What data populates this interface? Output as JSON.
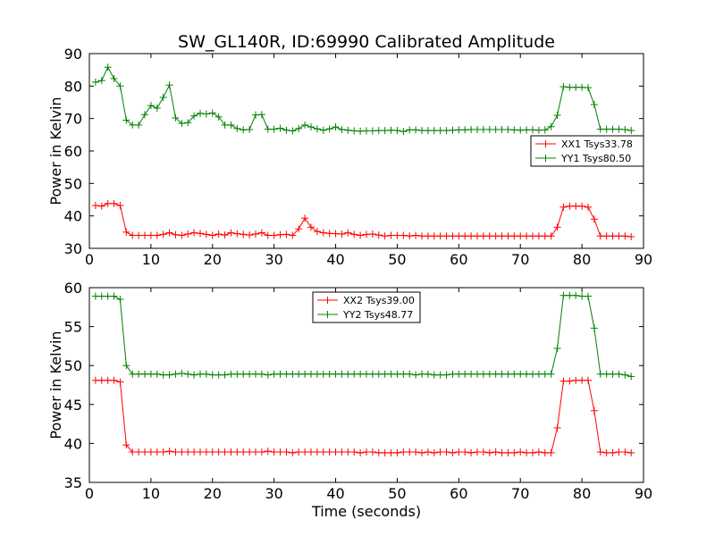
{
  "title": "SW_GL140R, ID:69990 Calibrated Amplitude",
  "chart_data": [
    {
      "type": "line",
      "title": "SW_GL140R, ID:69990 Calibrated Amplitude",
      "xlabel": "",
      "ylabel": "Power in Kelvin",
      "xlim": [
        0,
        90
      ],
      "ylim": [
        30,
        90
      ],
      "xticks": [
        0,
        10,
        20,
        30,
        40,
        50,
        60,
        70,
        80,
        90
      ],
      "yticks": [
        30,
        40,
        50,
        60,
        70,
        80,
        90
      ],
      "grid": false,
      "legend_position": "right",
      "x": [
        1,
        2,
        3,
        4,
        5,
        6,
        7,
        8,
        9,
        10,
        11,
        12,
        13,
        14,
        15,
        16,
        17,
        18,
        19,
        20,
        21,
        22,
        23,
        24,
        25,
        26,
        27,
        28,
        29,
        30,
        31,
        32,
        33,
        34,
        35,
        36,
        37,
        38,
        39,
        40,
        41,
        42,
        43,
        44,
        45,
        46,
        47,
        48,
        49,
        50,
        51,
        52,
        53,
        54,
        55,
        56,
        57,
        58,
        59,
        60,
        61,
        62,
        63,
        64,
        65,
        66,
        67,
        68,
        69,
        70,
        71,
        72,
        73,
        74,
        75,
        76,
        77,
        78,
        79,
        80,
        81,
        82,
        83,
        84,
        85,
        86,
        87,
        88
      ],
      "series": [
        {
          "name": "XX1 Tsys33.78",
          "color": "#ff0000",
          "values": [
            43.2,
            43.0,
            43.8,
            43.8,
            43.2,
            35.0,
            34.0,
            34.0,
            34.0,
            34.0,
            34.0,
            34.3,
            34.8,
            34.2,
            34.0,
            34.4,
            34.8,
            34.6,
            34.3,
            34.0,
            34.4,
            34.1,
            34.8,
            34.5,
            34.3,
            34.1,
            34.4,
            34.8,
            34.0,
            34.0,
            34.2,
            34.3,
            34.0,
            36.0,
            39.3,
            36.5,
            35.2,
            34.8,
            34.6,
            34.5,
            34.4,
            34.8,
            34.3,
            34.0,
            34.3,
            34.4,
            34.1,
            33.8,
            34.0,
            34.0,
            34.0,
            33.8,
            34.0,
            33.8,
            33.8,
            33.8,
            33.8,
            33.8,
            33.8,
            33.8,
            33.8,
            33.8,
            33.8,
            33.8,
            33.8,
            33.8,
            33.8,
            33.8,
            33.8,
            33.8,
            33.8,
            33.8,
            33.8,
            33.8,
            33.8,
            36.5,
            42.7,
            43.0,
            43.0,
            43.0,
            42.7,
            39.0,
            33.8,
            33.8,
            33.8,
            33.8,
            33.8,
            33.6
          ]
        },
        {
          "name": "YY1 Tsys80.50",
          "color": "#008000",
          "values": [
            81.2,
            81.7,
            85.8,
            82.3,
            80.0,
            69.5,
            68.0,
            68.0,
            71.2,
            74.0,
            73.2,
            76.5,
            80.3,
            70.2,
            68.5,
            68.7,
            70.8,
            71.6,
            71.4,
            71.7,
            70.5,
            68.0,
            68.0,
            66.9,
            66.5,
            66.6,
            71.1,
            71.2,
            66.7,
            66.7,
            67.0,
            66.4,
            66.2,
            66.9,
            68.0,
            67.4,
            66.8,
            66.4,
            66.8,
            67.4,
            66.6,
            66.4,
            66.2,
            66.1,
            66.2,
            66.2,
            66.3,
            66.3,
            66.4,
            66.3,
            66.0,
            66.5,
            66.5,
            66.3,
            66.3,
            66.3,
            66.3,
            66.3,
            66.4,
            66.5,
            66.5,
            66.6,
            66.6,
            66.6,
            66.6,
            66.6,
            66.6,
            66.6,
            66.5,
            66.4,
            66.5,
            66.5,
            66.4,
            66.5,
            67.5,
            71.0,
            79.8,
            79.6,
            79.6,
            79.6,
            79.5,
            74.3,
            66.7,
            66.7,
            66.7,
            66.7,
            66.6,
            66.3
          ]
        }
      ]
    },
    {
      "type": "line",
      "title": "",
      "xlabel": "Time (seconds)",
      "ylabel": "Power in Kelvin",
      "xlim": [
        0,
        90
      ],
      "ylim": [
        35,
        60
      ],
      "xticks": [
        0,
        10,
        20,
        30,
        40,
        50,
        60,
        70,
        80,
        90
      ],
      "yticks": [
        35,
        40,
        45,
        50,
        55,
        60
      ],
      "grid": false,
      "legend_position": "top-center",
      "x": [
        1,
        2,
        3,
        4,
        5,
        6,
        7,
        8,
        9,
        10,
        11,
        12,
        13,
        14,
        15,
        16,
        17,
        18,
        19,
        20,
        21,
        22,
        23,
        24,
        25,
        26,
        27,
        28,
        29,
        30,
        31,
        32,
        33,
        34,
        35,
        36,
        37,
        38,
        39,
        40,
        41,
        42,
        43,
        44,
        45,
        46,
        47,
        48,
        49,
        50,
        51,
        52,
        53,
        54,
        55,
        56,
        57,
        58,
        59,
        60,
        61,
        62,
        63,
        64,
        65,
        66,
        67,
        68,
        69,
        70,
        71,
        72,
        73,
        74,
        75,
        76,
        77,
        78,
        79,
        80,
        81,
        82,
        83,
        84,
        85,
        86,
        87,
        88
      ],
      "series": [
        {
          "name": "XX2 Tsys39.00",
          "color": "#ff0000",
          "values": [
            48.1,
            48.1,
            48.1,
            48.1,
            47.9,
            39.8,
            38.9,
            38.9,
            38.9,
            38.9,
            38.9,
            38.9,
            39.0,
            38.9,
            38.9,
            38.9,
            38.9,
            38.9,
            38.9,
            38.9,
            38.9,
            38.9,
            38.9,
            38.9,
            38.9,
            38.9,
            38.9,
            38.9,
            39.0,
            38.9,
            38.9,
            38.9,
            38.8,
            38.9,
            38.9,
            38.9,
            38.9,
            38.9,
            38.9,
            38.9,
            38.9,
            38.9,
            38.9,
            38.8,
            38.9,
            38.9,
            38.8,
            38.8,
            38.8,
            38.8,
            38.9,
            38.9,
            38.9,
            38.8,
            38.9,
            38.8,
            38.9,
            38.9,
            38.8,
            38.9,
            38.9,
            38.8,
            38.9,
            38.9,
            38.8,
            38.9,
            38.8,
            38.8,
            38.8,
            38.9,
            38.8,
            38.8,
            38.9,
            38.8,
            38.8,
            42.0,
            48.0,
            48.0,
            48.1,
            48.1,
            48.1,
            44.2,
            38.9,
            38.8,
            38.8,
            38.9,
            38.9,
            38.8
          ]
        },
        {
          "name": "YY2 Tsys48.77",
          "color": "#008000",
          "values": [
            58.9,
            58.9,
            58.9,
            58.9,
            58.5,
            50.0,
            48.9,
            48.9,
            48.9,
            48.9,
            48.9,
            48.8,
            48.8,
            48.9,
            49.0,
            48.9,
            48.8,
            48.9,
            48.9,
            48.8,
            48.8,
            48.8,
            48.9,
            48.9,
            48.9,
            48.9,
            48.9,
            48.9,
            48.8,
            48.9,
            48.9,
            48.9,
            48.9,
            48.9,
            48.9,
            48.9,
            48.9,
            48.9,
            48.9,
            48.9,
            48.9,
            48.9,
            48.9,
            48.9,
            48.9,
            48.9,
            48.9,
            48.9,
            48.9,
            48.9,
            48.9,
            48.9,
            48.8,
            48.9,
            48.9,
            48.8,
            48.8,
            48.8,
            48.9,
            48.9,
            48.9,
            48.9,
            48.9,
            48.9,
            48.9,
            48.9,
            48.9,
            48.9,
            48.9,
            48.9,
            48.9,
            48.9,
            48.9,
            48.9,
            48.9,
            52.2,
            59.0,
            59.0,
            59.0,
            58.9,
            58.9,
            54.8,
            48.9,
            48.9,
            48.9,
            48.9,
            48.8,
            48.6
          ]
        }
      ]
    }
  ]
}
